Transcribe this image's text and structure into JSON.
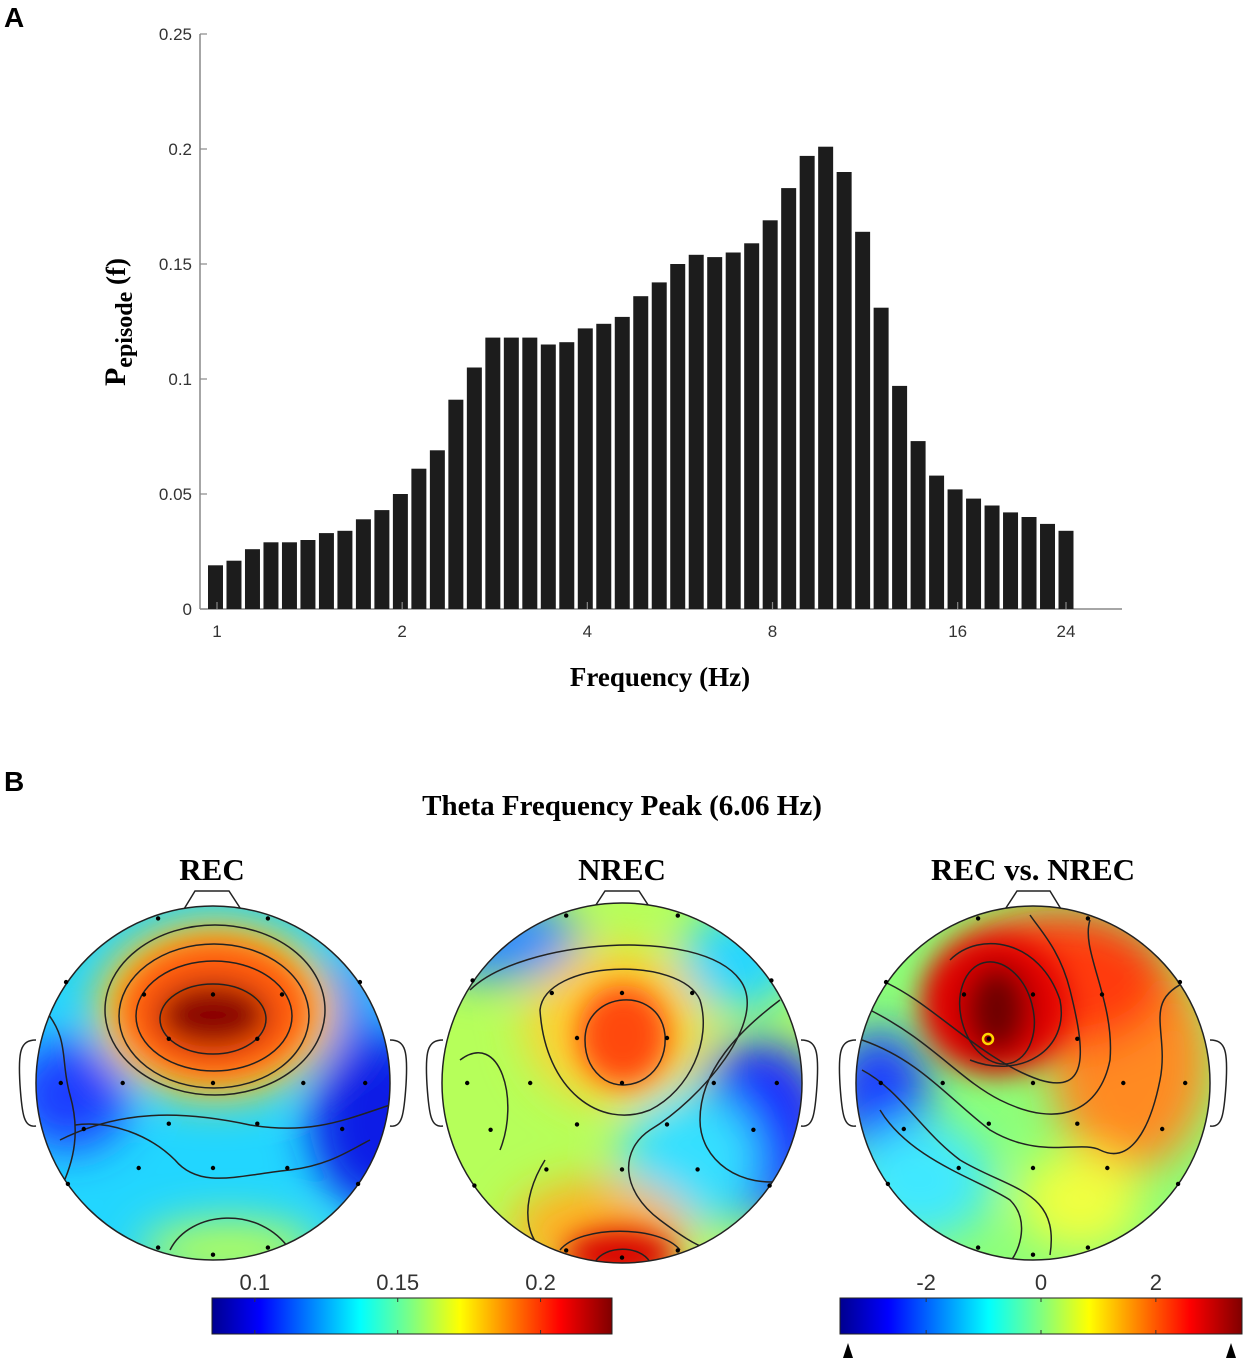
{
  "panel_a": {
    "label": "A",
    "chart_data": {
      "type": "bar",
      "xlabel": "Frequency (Hz)",
      "ylabel_main": "P",
      "ylabel_sub": "episode",
      "ylabel_tail": " (f)",
      "x_scale": "log2",
      "x_ticks": [
        1,
        2,
        4,
        8,
        16,
        24
      ],
      "x_tick_labels": [
        "1",
        "2",
        "4",
        "8",
        "16",
        "24"
      ],
      "y_ticks": [
        0,
        0.05,
        0.1,
        0.15,
        0.2,
        0.25
      ],
      "y_tick_labels": [
        "0",
        "0.05",
        "0.1",
        "0.15",
        "0.2",
        "0.25"
      ],
      "ylim": [
        0,
        0.25
      ],
      "values": [
        0.019,
        0.021,
        0.026,
        0.029,
        0.029,
        0.03,
        0.033,
        0.034,
        0.039,
        0.043,
        0.05,
        0.061,
        0.069,
        0.091,
        0.105,
        0.118,
        0.118,
        0.118,
        0.115,
        0.116,
        0.122,
        0.124,
        0.127,
        0.136,
        0.142,
        0.15,
        0.154,
        0.153,
        0.155,
        0.159,
        0.169,
        0.183,
        0.197,
        0.201,
        0.19,
        0.164,
        0.131,
        0.097,
        0.073,
        0.058,
        0.052,
        0.048,
        0.045,
        0.042,
        0.04,
        0.037,
        0.034
      ]
    }
  },
  "panel_b": {
    "label": "B",
    "title": "Theta Frequency Peak  (6.06 Hz)",
    "maps": [
      {
        "title": "REC"
      },
      {
        "title": "NREC"
      },
      {
        "title": "REC vs. NREC"
      }
    ],
    "colorbar_left": {
      "ticks": [
        0.1,
        0.15,
        0.2
      ],
      "tick_labels": [
        "0.1",
        "0.15",
        "0.2"
      ],
      "range": [
        0.085,
        0.225
      ]
    },
    "colorbar_right": {
      "ticks": [
        -2,
        0,
        2
      ],
      "tick_labels": [
        "-2",
        "0",
        "2"
      ],
      "range": [
        -3.5,
        3.5
      ]
    }
  }
}
